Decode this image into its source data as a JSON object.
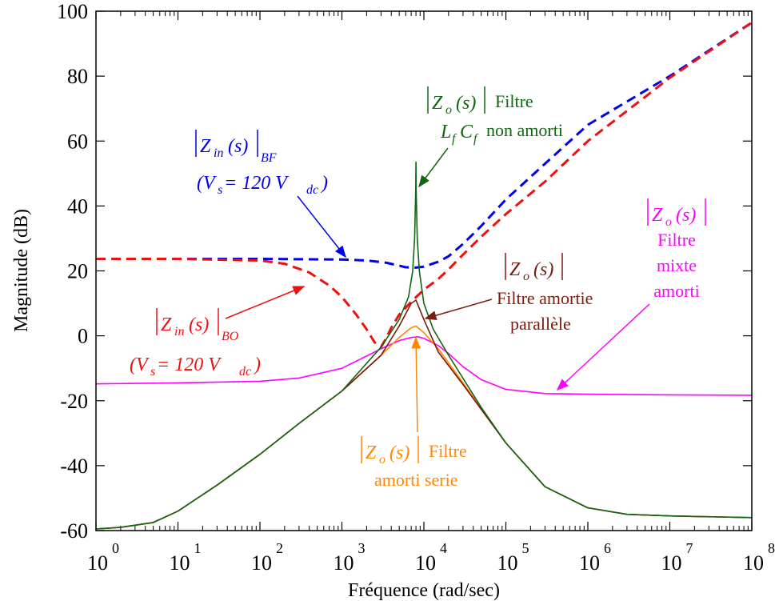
{
  "chart_data": {
    "type": "line",
    "xlabel": "Fréquence (rad/sec)",
    "ylabel": "Magnitude (dB)",
    "x_scale": "log",
    "xlim": [
      1,
      100000000
    ],
    "ylim": [
      -60,
      100
    ],
    "x_ticks": [
      {
        "base": "10",
        "exp": "0"
      },
      {
        "base": "10",
        "exp": "1"
      },
      {
        "base": "10",
        "exp": "2"
      },
      {
        "base": "10",
        "exp": "3"
      },
      {
        "base": "10",
        "exp": "4"
      },
      {
        "base": "10",
        "exp": "5"
      },
      {
        "base": "10",
        "exp": "6"
      },
      {
        "base": "10",
        "exp": "7"
      },
      {
        "base": "10",
        "exp": "8"
      }
    ],
    "y_ticks": [
      "-60",
      "-40",
      "-20",
      "0",
      "20",
      "40",
      "60",
      "80",
      "100"
    ],
    "grid": false,
    "legend": "none",
    "series": [
      {
        "color": "#0000ee",
        "dash": "dashed",
        "x": [
          1,
          10,
          100,
          1000,
          2000,
          3500,
          5000,
          6000,
          8000,
          10000,
          15000,
          20000,
          30000,
          50000,
          100000,
          300000,
          1000000,
          10000000,
          100000000
        ],
        "y": [
          23.7,
          23.7,
          23.7,
          23.5,
          23.2,
          22.5,
          21.6,
          21.1,
          21.0,
          21.3,
          22.8,
          24.5,
          28.3,
          33.8,
          42.0,
          53.0,
          65.0,
          80.0,
          96.5
        ]
      },
      {
        "color": "#ee1111",
        "dash": "dashed",
        "x": [
          1,
          10,
          100,
          200,
          400,
          700,
          1000,
          1500,
          2000,
          2500,
          3000,
          3500,
          4000,
          5000,
          7000,
          10000,
          15000,
          20000,
          30000,
          50000,
          100000,
          300000,
          1000000,
          10000000,
          100000000
        ],
        "y": [
          23.7,
          23.7,
          23.2,
          22.2,
          19.5,
          15.5,
          12.0,
          6.5,
          2.0,
          -2.0,
          -3.5,
          -0.5,
          2.5,
          6.5,
          10.5,
          14.2,
          17.5,
          20.5,
          25.0,
          30.5,
          37.5,
          47.5,
          60.0,
          79.5,
          96.5
        ]
      },
      {
        "color": "#ff00ff",
        "dash": "solid",
        "x": [
          1,
          10,
          100,
          300,
          1000,
          3000,
          5000,
          7000,
          8500,
          10000,
          15000,
          20000,
          30000,
          50000,
          100000,
          300000,
          1000000,
          10000000,
          100000000
        ],
        "y": [
          -14.8,
          -14.5,
          -14.0,
          -13.0,
          -10.0,
          -4.0,
          -1.5,
          -0.5,
          -0.3,
          -0.8,
          -3.0,
          -5.5,
          -9.5,
          -13.5,
          -16.5,
          -17.8,
          -18.0,
          -18.2,
          -18.3
        ]
      },
      {
        "color": "#ff8800",
        "dash": "solid",
        "x": [
          1,
          2,
          5,
          10,
          30,
          100,
          300,
          1000,
          3000,
          5000,
          7000,
          8000,
          10000,
          15000,
          30000,
          100000,
          300000,
          1000000,
          3000000,
          10000000,
          100000000
        ],
        "y": [
          -59.5,
          -59.0,
          -57.5,
          -54.0,
          -46.0,
          -36.5,
          -27.0,
          -17.0,
          -6.0,
          -0.5,
          2.5,
          3.0,
          1.0,
          -4.0,
          -14.5,
          -33.0,
          -46.5,
          -53.0,
          -55.0,
          -55.5,
          -56.0
        ]
      },
      {
        "color": "#7a1a10",
        "dash": "solid",
        "x": [
          1,
          2,
          5,
          10,
          30,
          100,
          300,
          1000,
          3000,
          5000,
          7000,
          8000,
          10000,
          15000,
          30000,
          100000,
          300000,
          1000000,
          3000000,
          10000000,
          100000000
        ],
        "y": [
          -59.5,
          -59.0,
          -57.5,
          -54.0,
          -46.0,
          -36.5,
          -27.0,
          -17.0,
          -6.0,
          3.0,
          10.0,
          11.0,
          5.0,
          -5.0,
          -15.0,
          -33.0,
          -46.5,
          -53.0,
          -55.0,
          -55.5,
          -56.0
        ]
      },
      {
        "color": "#116611",
        "dash": "solid",
        "x": [
          1,
          2,
          5,
          10,
          30,
          100,
          300,
          1000,
          3000,
          5000,
          6500,
          7300,
          7700,
          7950,
          8000,
          8050,
          8300,
          8800,
          10000,
          13000,
          20000,
          50000,
          100000,
          300000,
          1000000,
          3000000,
          10000000,
          100000000
        ],
        "y": [
          -59.5,
          -59.0,
          -57.5,
          -54.0,
          -46.0,
          -36.5,
          -27.0,
          -17.0,
          -3.5,
          5.0,
          12.0,
          20.0,
          30.0,
          45.0,
          53.5,
          45.0,
          30.0,
          20.0,
          10.0,
          2.0,
          -6.0,
          -22.0,
          -33.0,
          -46.5,
          -53.0,
          -55.0,
          -55.5,
          -56.0
        ]
      }
    ],
    "annotations": [
      {
        "color": "#116611",
        "line1_z": "Z",
        "line1_sub": "o",
        "line1_arg": "(s)",
        "line1_text": "Filtre",
        "line2_l": "L",
        "line2_lsub": "f",
        "line2_c": "C",
        "line2_csub": "f",
        "line2_text": "non amorti"
      },
      {
        "color": "#0000ee",
        "line1_z": "Z",
        "line1_sub": "in",
        "line1_arg": "(s)",
        "line1_post": "BF",
        "line2": "(V",
        "line2_sub": "s",
        "line2_mid": " = 120 V",
        "line2_sub2": "dc",
        "line2_end": ")"
      },
      {
        "color": "#ee1111",
        "line1_z": "Z",
        "line1_sub": "in",
        "line1_arg": "(s)",
        "line1_post": "BO",
        "line2": "(V",
        "line2_sub": "s",
        "line2_mid": " = 120 V",
        "line2_sub2": "dc",
        "line2_end": ")"
      },
      {
        "color": "#7a1a10",
        "line1_z": "Z",
        "line1_sub": "o",
        "line1_arg": "(s)",
        "line2_text": "Filtre amortie",
        "line3_text": "parallèle"
      },
      {
        "color": "#ff00ff",
        "line1_z": "Z",
        "line1_sub": "o",
        "line1_arg": "(s)",
        "line2_text": "Filtre",
        "line3_text": "mixte",
        "line4_text": "amorti"
      },
      {
        "color": "#ff8800",
        "line1_z": "Z",
        "line1_sub": "o",
        "line1_arg": "(s)",
        "line1_text": "Filtre",
        "line2_text": "amorti serie"
      }
    ]
  }
}
